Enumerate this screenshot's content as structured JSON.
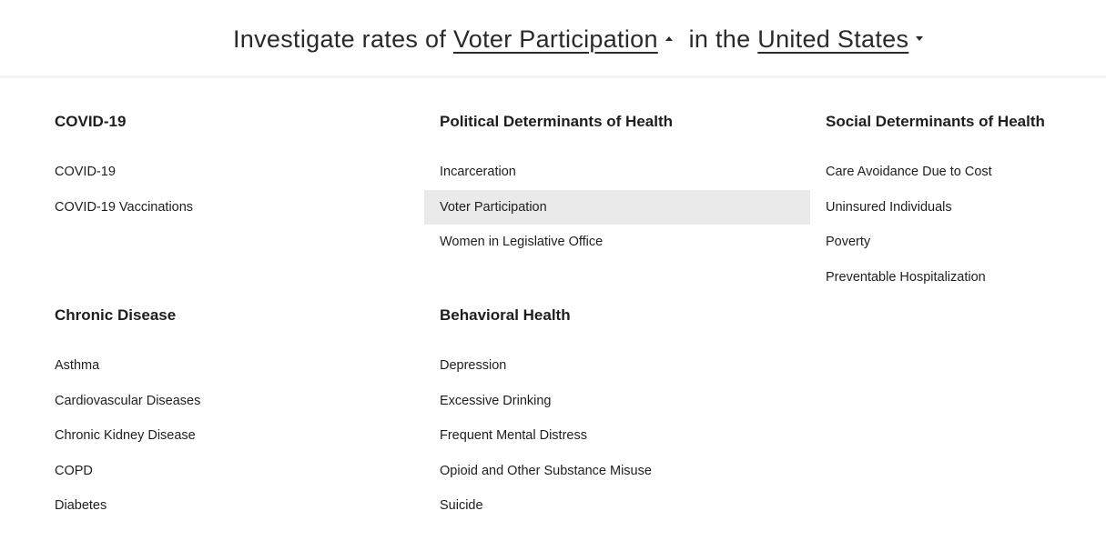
{
  "header": {
    "prefix": "Investigate rates of",
    "topic": "Voter Participation",
    "middle": "in the",
    "location": "United States"
  },
  "menu": {
    "groups": [
      {
        "title": "COVID-19",
        "items": [
          "COVID-19",
          "COVID-19 Vaccinations"
        ]
      },
      {
        "title": "Political Determinants of Health",
        "items": [
          "Incarceration",
          "Voter Participation",
          "Women in Legislative Office"
        ],
        "selected": "Voter Participation"
      },
      {
        "title": "Social Determinants of Health",
        "items": [
          "Care Avoidance Due to Cost",
          "Uninsured Individuals",
          "Poverty",
          "Preventable Hospitalization"
        ]
      },
      {
        "title": "Chronic Disease",
        "items": [
          "Asthma",
          "Cardiovascular Diseases",
          "Chronic Kidney Disease",
          "COPD",
          "Diabetes"
        ]
      },
      {
        "title": "Behavioral Health",
        "items": [
          "Depression",
          "Excessive Drinking",
          "Frequent Mental Distress",
          "Opioid and Other Substance Misuse",
          "Suicide"
        ]
      }
    ]
  }
}
